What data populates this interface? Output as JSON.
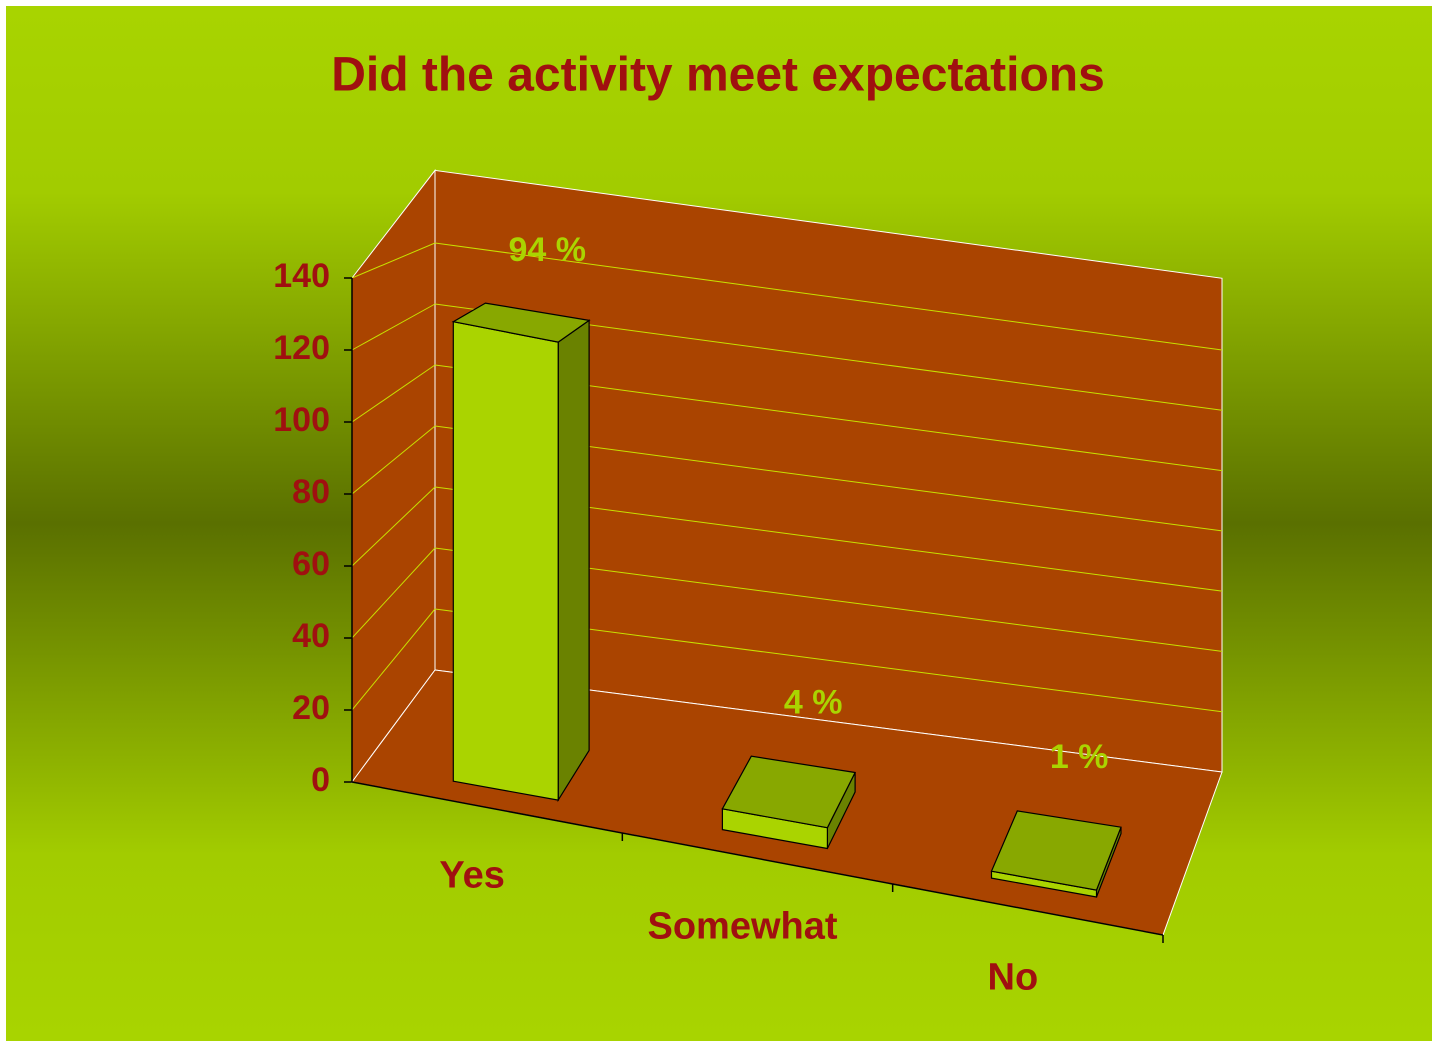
{
  "chart_data": {
    "type": "bar",
    "title": "Did the activity meet expectations",
    "categories": [
      "Yes",
      "Somewhat",
      "No"
    ],
    "values": [
      131,
      6,
      2
    ],
    "value_labels": [
      "94 %",
      "4 %",
      "1 %"
    ],
    "ylim": [
      0,
      140
    ],
    "yticks": [
      0,
      20,
      40,
      60,
      80,
      100,
      120,
      140
    ],
    "grid": true,
    "color": "#aad400",
    "wall_color": "#aa4400",
    "text_color": "#a01010"
  }
}
